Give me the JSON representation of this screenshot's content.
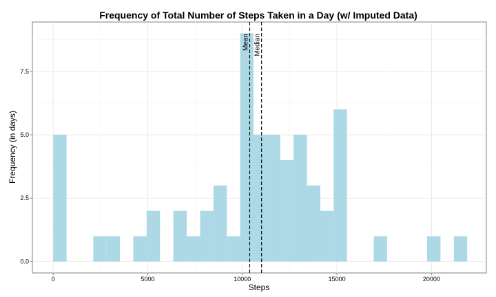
{
  "chart_data": {
    "type": "bar",
    "title": "Frequency of Total Number of Steps Taken in a Day (w/ Imputed Data)",
    "xlabel": "Steps",
    "ylabel": "Frequency (in days)",
    "xlim": [
      -1100,
      22900
    ],
    "ylim": [
      -0.45,
      9.45
    ],
    "x_ticks": [
      0,
      5000,
      10000,
      15000,
      20000
    ],
    "x_tick_labels": [
      "0",
      "5000",
      "10000",
      "15000",
      "20000"
    ],
    "y_ticks": [
      0,
      2.5,
      5,
      7.5
    ],
    "y_tick_labels": [
      "0.0",
      "2.5",
      "5.0",
      "7.5"
    ],
    "bin_width": 706,
    "bins": [
      {
        "start": 0,
        "count": 5
      },
      {
        "start": 2118,
        "count": 1
      },
      {
        "start": 2824,
        "count": 1
      },
      {
        "start": 4236,
        "count": 1
      },
      {
        "start": 4942,
        "count": 2
      },
      {
        "start": 6354,
        "count": 2
      },
      {
        "start": 7060,
        "count": 1
      },
      {
        "start": 7766,
        "count": 2
      },
      {
        "start": 8472,
        "count": 3
      },
      {
        "start": 9178,
        "count": 1
      },
      {
        "start": 9884,
        "count": 9
      },
      {
        "start": 10590,
        "count": 5
      },
      {
        "start": 11296,
        "count": 5
      },
      {
        "start": 12002,
        "count": 4
      },
      {
        "start": 12708,
        "count": 5
      },
      {
        "start": 13414,
        "count": 3
      },
      {
        "start": 14120,
        "count": 2
      },
      {
        "start": 14826,
        "count": 6
      },
      {
        "start": 16944,
        "count": 1
      },
      {
        "start": 19768,
        "count": 1
      },
      {
        "start": 21180,
        "count": 1
      }
    ],
    "bar_color": "#add8e6",
    "grid": true,
    "reference_lines": [
      {
        "label": "Mean",
        "value": 10390
      },
      {
        "label": "Median",
        "value": 11015
      }
    ]
  }
}
